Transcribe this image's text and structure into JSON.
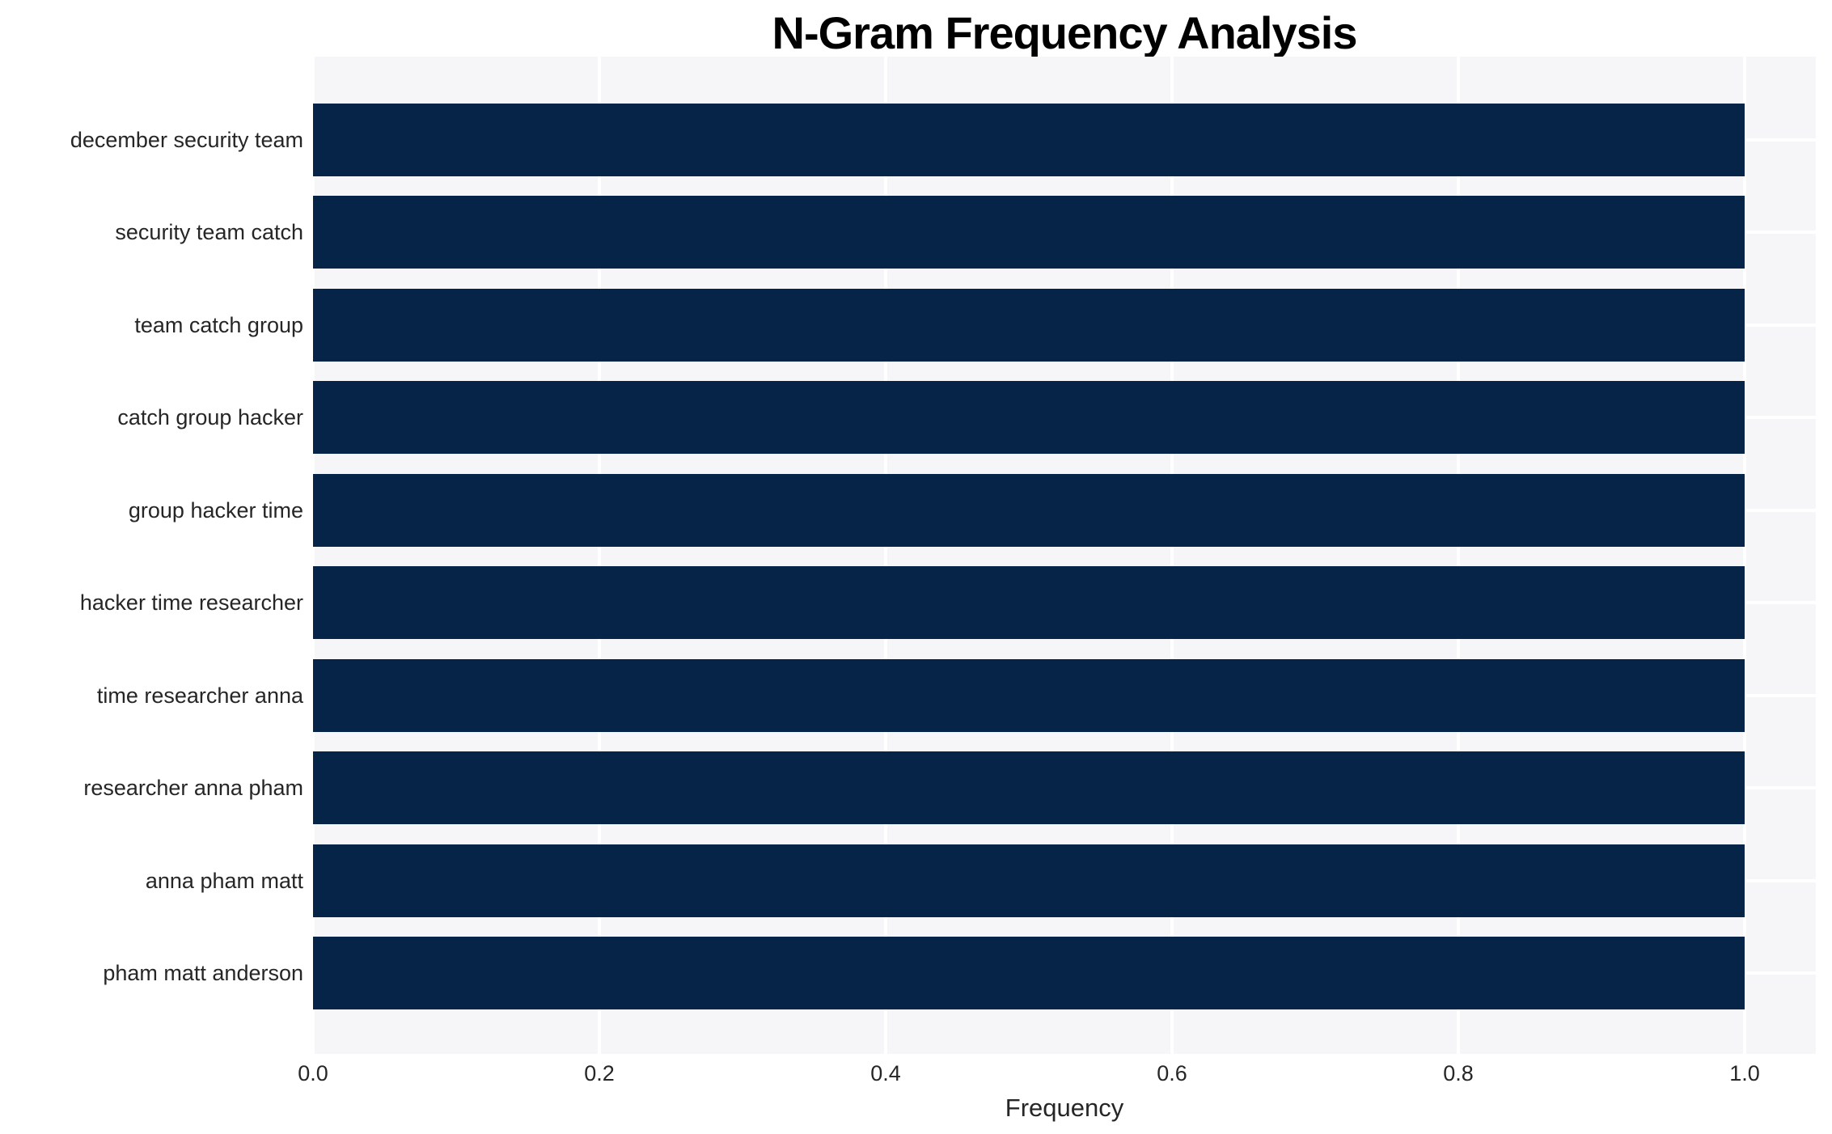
{
  "chart_data": {
    "type": "bar",
    "orientation": "horizontal",
    "title": "N-Gram Frequency Analysis",
    "xlabel": "Frequency",
    "ylabel": "",
    "categories": [
      "december security team",
      "security team catch",
      "team catch group",
      "catch group hacker",
      "group hacker time",
      "hacker time researcher",
      "time researcher anna",
      "researcher anna pham",
      "anna pham matt",
      "pham matt anderson"
    ],
    "values": [
      1.0,
      1.0,
      1.0,
      1.0,
      1.0,
      1.0,
      1.0,
      1.0,
      1.0,
      1.0
    ],
    "xlim": [
      0.0,
      1.05
    ],
    "xticks": [
      0.0,
      0.2,
      0.4,
      0.6,
      0.8,
      1.0
    ],
    "xticklabels": [
      "0.0",
      "0.2",
      "0.4",
      "0.6",
      "0.8",
      "1.0"
    ],
    "grid": true,
    "legend": null,
    "colors": {
      "bar": "#062448",
      "plot_background": "#f6f6f8",
      "figure_background": "#ffffff",
      "gridline": "#ffffff",
      "tick_text": "#262626",
      "title_text": "#000000"
    }
  }
}
